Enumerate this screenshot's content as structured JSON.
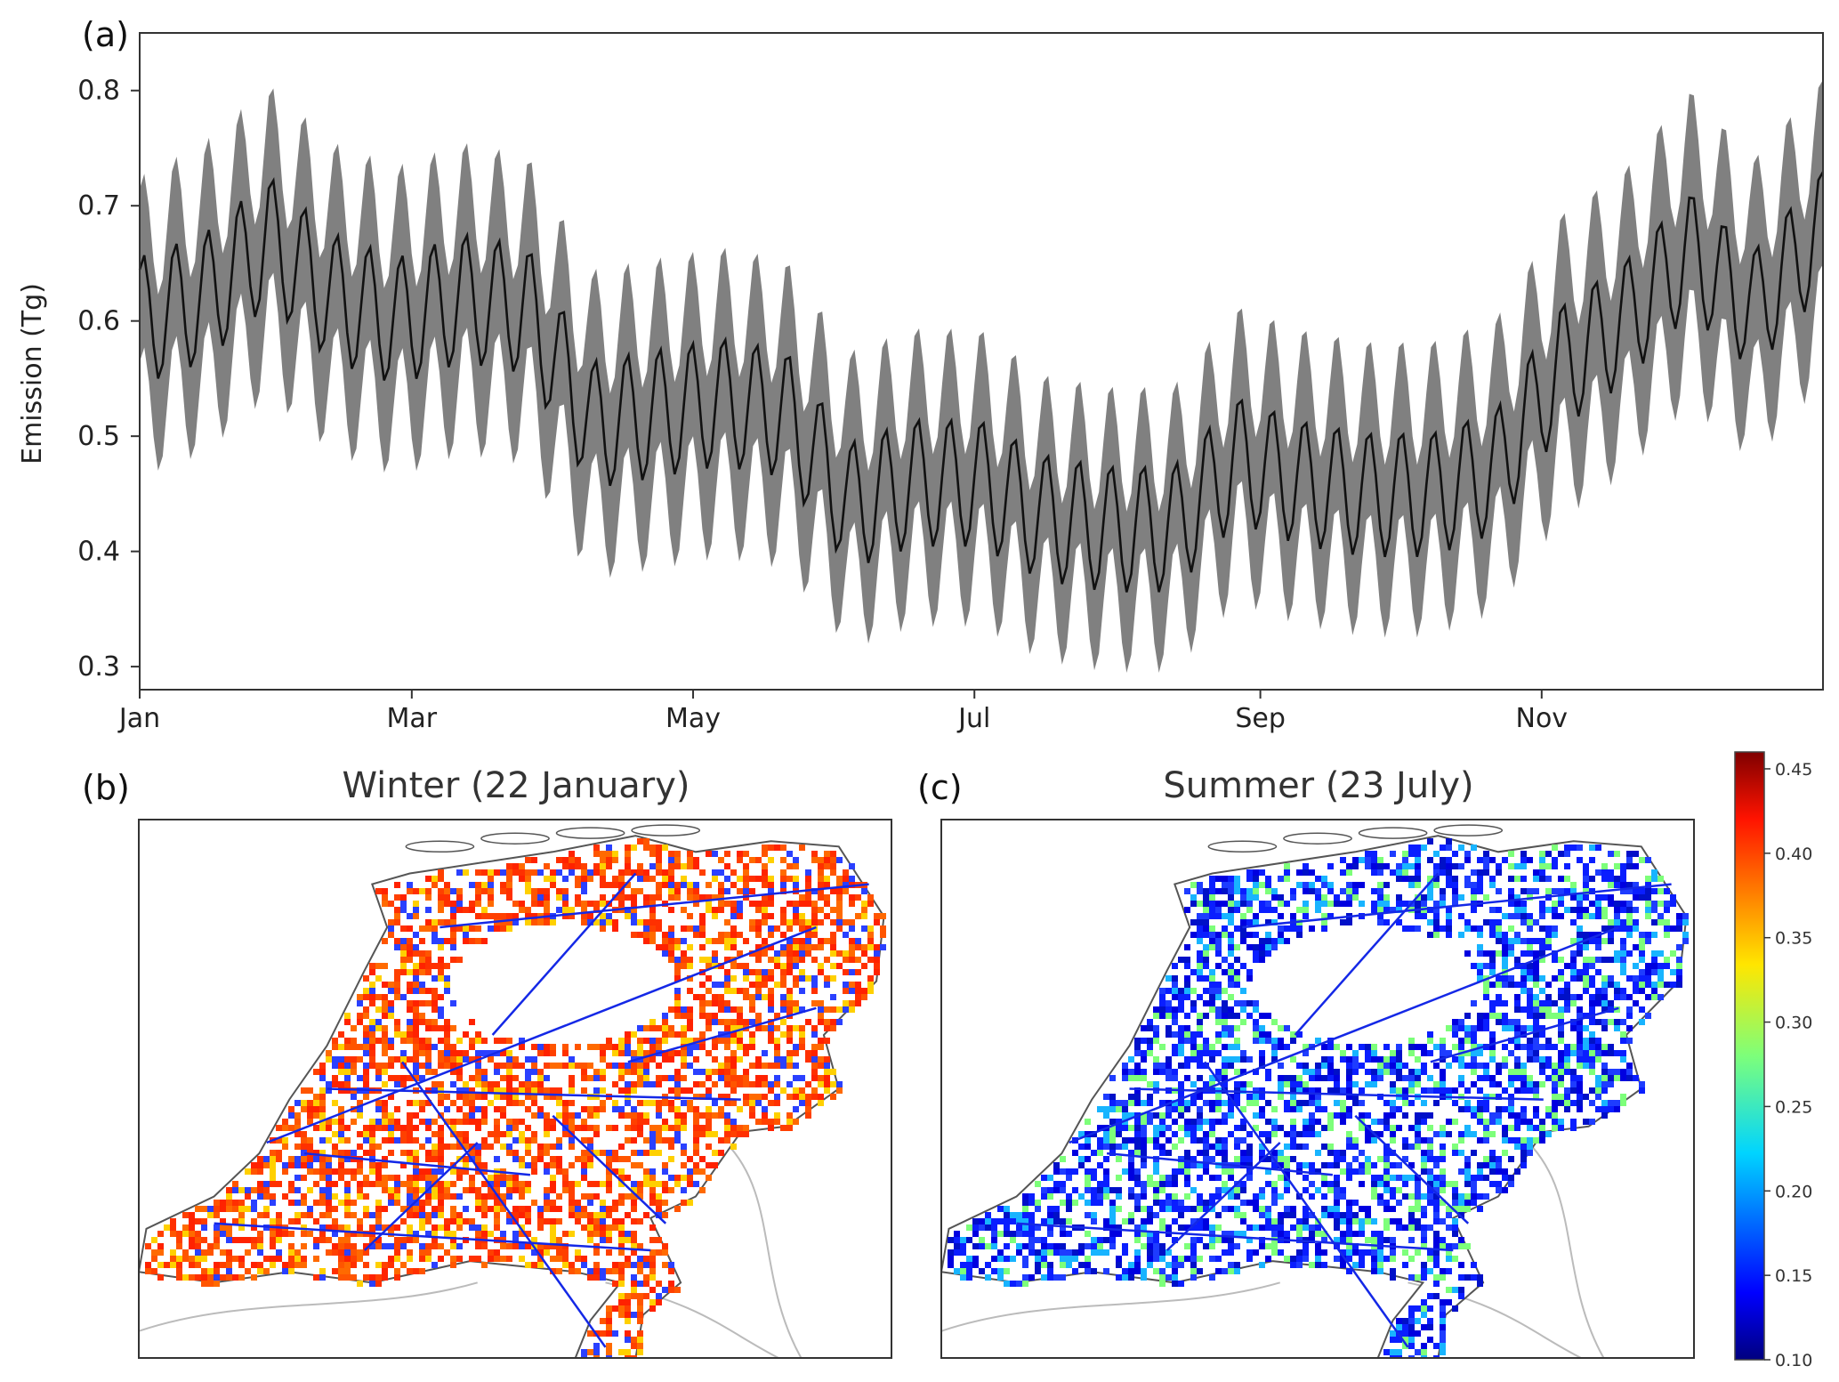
{
  "panels": {
    "a_label": "(a)",
    "b_label": "(b)",
    "c_label": "(c)"
  },
  "chart_data": [
    {
      "type": "line",
      "panel": "(a)",
      "ylabel": "Emission (Tg)",
      "xlabel": "",
      "x_ticks": [
        "Jan",
        "Mar",
        "May",
        "Jul",
        "Sep",
        "Nov"
      ],
      "x_tick_days": [
        1,
        60,
        121,
        182,
        244,
        305
      ],
      "y_ticks": [
        0.3,
        0.4,
        0.5,
        0.6,
        0.7,
        0.8
      ],
      "xlim": [
        1,
        366
      ],
      "ylim": [
        0.28,
        0.85
      ],
      "band": "uncertainty range (gray)",
      "x": [
        1,
        15,
        29,
        43,
        57,
        71,
        85,
        99,
        113,
        127,
        141,
        155,
        169,
        183,
        197,
        211,
        225,
        239,
        253,
        267,
        281,
        295,
        309,
        323,
        337,
        351,
        366
      ],
      "series": [
        {
          "values": [
            0.6,
            0.62,
            0.67,
            0.62,
            0.6,
            0.62,
            0.61,
            0.51,
            0.52,
            0.53,
            0.52,
            0.44,
            0.46,
            0.46,
            0.43,
            0.42,
            0.42,
            0.48,
            0.46,
            0.45,
            0.45,
            0.47,
            0.56,
            0.6,
            0.66,
            0.61,
            0.68
          ],
          "lower": [
            0.53,
            0.55,
            0.6,
            0.55,
            0.53,
            0.55,
            0.54,
            0.44,
            0.45,
            0.46,
            0.45,
            0.38,
            0.4,
            0.4,
            0.37,
            0.36,
            0.36,
            0.42,
            0.4,
            0.39,
            0.39,
            0.41,
            0.49,
            0.53,
            0.59,
            0.54,
            0.61
          ],
          "upper": [
            0.66,
            0.69,
            0.74,
            0.69,
            0.67,
            0.69,
            0.68,
            0.58,
            0.59,
            0.6,
            0.59,
            0.51,
            0.53,
            0.53,
            0.49,
            0.48,
            0.48,
            0.55,
            0.53,
            0.52,
            0.52,
            0.54,
            0.63,
            0.67,
            0.74,
            0.68,
            0.75
          ]
        }
      ]
    },
    {
      "type": "heatmap",
      "panel": "(b)",
      "title": "Winter (22 January)"
    },
    {
      "type": "heatmap",
      "panel": "(c)",
      "title": "Summer (23 July)"
    }
  ],
  "colorbar": {
    "ticks": [
      "0.45",
      "0.40",
      "0.35",
      "0.30",
      "0.25",
      "0.20",
      "0.15",
      "0.10"
    ],
    "range": [
      0.1,
      0.46
    ],
    "colormap": "jet"
  },
  "colors": {
    "line": "#111111",
    "band": "#808080",
    "winter_field": "#ff4000",
    "summer_field": "#0a1eff",
    "road": "#1428e6",
    "border": "#bbbbbb",
    "coast": "#555555"
  }
}
